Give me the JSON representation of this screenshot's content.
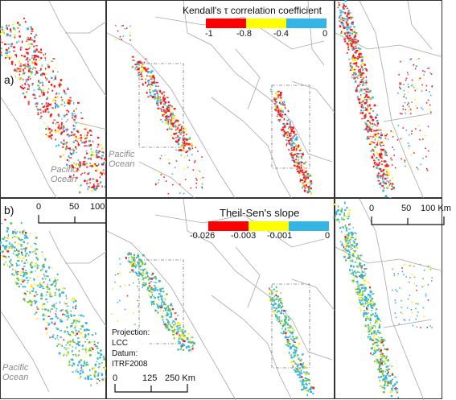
{
  "panel_labels": {
    "a": "a)",
    "b": "b)"
  },
  "ocean_label": {
    "line1": "Pacific",
    "line2": "Ocean"
  },
  "legend_a": {
    "title": "Kendall's τ correlation coefficient",
    "ticks": [
      "-1",
      "-0.8",
      "-0.4",
      "0"
    ],
    "colors": [
      "#ff0000",
      "#ffff00",
      "#33b5e5"
    ]
  },
  "legend_b": {
    "title": "Theil-Sen's slope",
    "ticks": [
      "-0.026",
      "-0.003",
      "-0.001",
      "0"
    ],
    "colors": [
      "#ff0000",
      "#ffff00",
      "#33b5e5"
    ]
  },
  "scalebar_zoom": {
    "ticks": [
      "0",
      "50",
      "100 Km"
    ]
  },
  "scalebar_overview": {
    "ticks": [
      "0",
      "125",
      "250 Km"
    ]
  },
  "projection": {
    "line1": "Projection:",
    "line2": "LCC",
    "line3": "Datum:",
    "line4": "ITRF2008"
  },
  "point_colors": {
    "red": "#ff1a1a",
    "yellow": "#ffee00",
    "blue": "#33b5e5",
    "green": "#6cc04a"
  }
}
